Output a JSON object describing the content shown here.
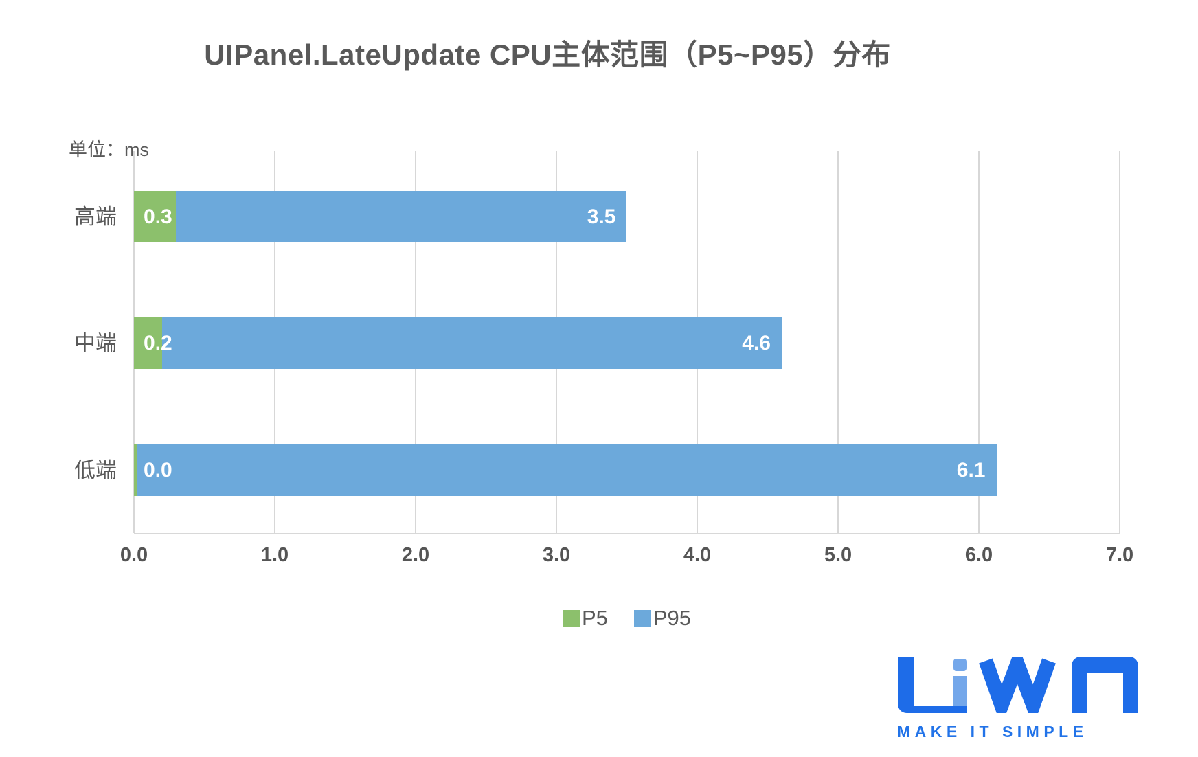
{
  "title": "UIPanel.LateUpdate CPU主体范围（P5~P95）分布",
  "unit": {
    "label": "单位：",
    "value": "ms"
  },
  "chart_data": {
    "type": "bar",
    "orientation": "horizontal",
    "title": "UIPanel.LateUpdate CPU主体范围（P5~P95）分布",
    "unit": "ms",
    "categories": [
      "高端",
      "中端",
      "低端"
    ],
    "series": [
      {
        "name": "P5",
        "color": "#8cc06c",
        "values": [
          0.3,
          0.2,
          0.0
        ]
      },
      {
        "name": "P95",
        "color": "#6ca9db",
        "values": [
          3.5,
          4.6,
          6.1
        ]
      }
    ],
    "bar_value_labels": {
      "P5": [
        "0.3",
        "0.2",
        "0.0"
      ],
      "P95": [
        "3.5",
        "4.6",
        "6.1"
      ]
    },
    "xlim": [
      0,
      7
    ],
    "x_ticks": [
      "0.0",
      "1.0",
      "2.0",
      "3.0",
      "4.0",
      "5.0",
      "6.0",
      "7.0"
    ],
    "grid": true,
    "legend_position": "bottom"
  },
  "legend": {
    "items": [
      {
        "label": "P5",
        "color": "#8cc06c"
      },
      {
        "label": "P95",
        "color": "#6ca9db"
      }
    ]
  },
  "colors": {
    "text": "#595959",
    "gridline": "#d7d7d7",
    "bar_green": "#8cc06c",
    "bar_blue": "#6ca9db",
    "logo_blue": "#1e6ce8",
    "logo_light_blue": "#74a7ea"
  },
  "logo": {
    "brand": "LiWA",
    "tagline": "MAKE IT SIMPLE"
  }
}
